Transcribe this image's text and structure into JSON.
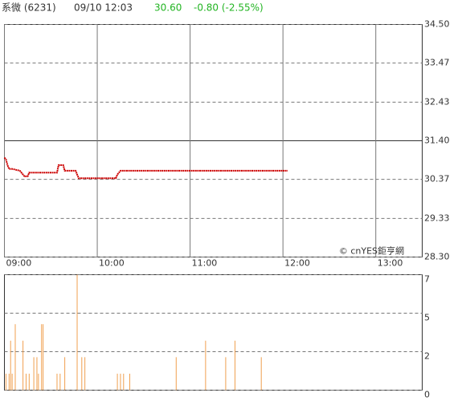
{
  "header": {
    "name": "系微 (6231)",
    "datetime": "09/10 12:03",
    "price": "30.60",
    "change": "-0.80 (-2.55%)"
  },
  "chart_data": [
    {
      "type": "line",
      "color": "#cc0000",
      "watermark": "© cnYES鉅亨網",
      "x": [
        "09:00",
        "09:01",
        "09:02",
        "09:03",
        "09:05",
        "09:10",
        "09:12",
        "09:13",
        "09:15",
        "09:16",
        "09:34",
        "09:35",
        "09:38",
        "09:39",
        "09:46",
        "09:48",
        "10:12",
        "10:13",
        "10:15",
        "12:03"
      ],
      "values": [
        30.95,
        30.9,
        30.75,
        30.65,
        30.65,
        30.6,
        30.5,
        30.45,
        30.45,
        30.55,
        30.55,
        30.75,
        30.75,
        30.6,
        30.6,
        30.4,
        30.4,
        30.5,
        30.6,
        30.6
      ],
      "xlim": [
        "09:00",
        "13:30"
      ],
      "xticks": [
        "09:00",
        "10:00",
        "11:00",
        "12:00",
        "13:00"
      ],
      "ylim": [
        28.3,
        34.5
      ],
      "yticks": [
        {
          "value": 34.5,
          "label": "34.50"
        },
        33.47,
        32.43,
        {
          "value": 31.4,
          "label": "31.40"
        },
        30.37,
        29.33,
        {
          "value": 28.3,
          "label": "28.30"
        }
      ],
      "reference_line": 31.4,
      "grid": true
    },
    {
      "type": "bar",
      "color": "#f0a050",
      "x": [
        "09:01",
        "09:03",
        "09:04",
        "09:05",
        "09:07",
        "09:12",
        "09:14",
        "09:16",
        "09:19",
        "09:21",
        "09:22",
        "09:24",
        "09:25",
        "09:34",
        "09:36",
        "09:39",
        "09:47",
        "09:50",
        "09:52",
        "10:13",
        "10:15",
        "10:17",
        "10:21",
        "10:51",
        "11:10",
        "11:23",
        "11:29",
        "11:46"
      ],
      "values": [
        1,
        1,
        3,
        1,
        4,
        3,
        1,
        1,
        2,
        2,
        1,
        4,
        4,
        1,
        1,
        2,
        7,
        2,
        2,
        1,
        1,
        1,
        1,
        2,
        3,
        2,
        3,
        2
      ],
      "xlim": [
        "09:00",
        "13:30"
      ],
      "ylim": [
        0,
        7
      ],
      "yticks": [
        7,
        {
          "value": 4.667,
          "label": "5"
        },
        {
          "value": 2.333,
          "label": "2"
        },
        0
      ],
      "grid": true
    }
  ]
}
